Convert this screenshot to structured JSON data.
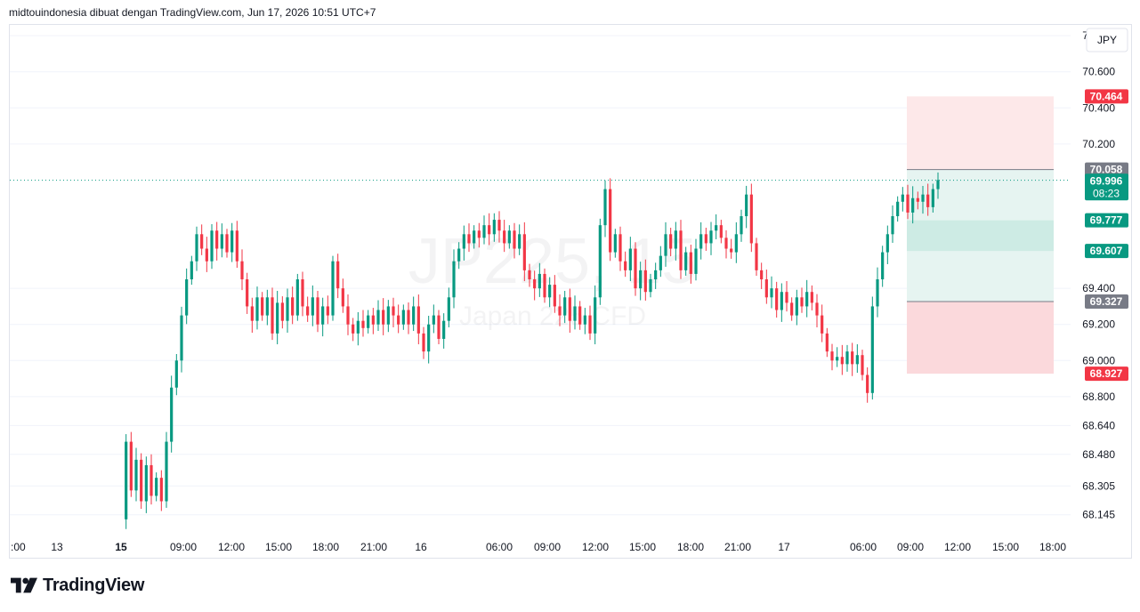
{
  "header": {
    "text": "midtouindonesia dibuat dengan TradingView.com, Jun 17, 2026 10:51 UTC+7"
  },
  "footer": {
    "brand": "TradingView",
    "logo_icon": "tradingview-logo-icon"
  },
  "colors": {
    "up": "#089981",
    "down": "#f23645",
    "grid": "#f0f3fa",
    "axis_text": "#131722",
    "profit_zone": "#e6f4f1",
    "loss_zone": "#fde8e9",
    "neutral_label": "#787b86",
    "stop_label": "#f23645",
    "target_label": "#f23645"
  },
  "chart_data": {
    "type": "candlestick",
    "watermark": {
      "symbol": "JP225, 15",
      "description": "Japan 225 CFD"
    },
    "currency_label": "JPY",
    "y_axis": {
      "min": 68.05,
      "max": 70.86,
      "ticks": [
        70.8,
        70.6,
        70.4,
        70.2,
        69.4,
        69.2,
        69.0,
        68.8,
        68.64,
        68.48,
        68.305,
        68.145
      ],
      "tick_labels": [
        "70.800",
        "70.600",
        "70.400",
        "70.200",
        "69.400",
        "69.200",
        "69.000",
        "68.800",
        "68.640",
        "68.480",
        "68.305",
        "68.145"
      ]
    },
    "x_axis": {
      "labels": [
        {
          "t": "13",
          "bold": false
        },
        {
          "t": "15",
          "bold": true
        },
        {
          "t": "09:00",
          "bold": false
        },
        {
          "t": "12:00",
          "bold": false
        },
        {
          "t": "15:00",
          "bold": false
        },
        {
          "t": "18:00",
          "bold": false
        },
        {
          "t": "21:00",
          "bold": false
        },
        {
          "t": "16",
          "bold": false
        },
        {
          "t": "06:00",
          "bold": false
        },
        {
          "t": "09:00",
          "bold": false
        },
        {
          "t": "12:00",
          "bold": false
        },
        {
          "t": "15:00",
          "bold": false
        },
        {
          "t": "18:00",
          "bold": false
        },
        {
          "t": "21:00",
          "bold": false
        },
        {
          "t": "17",
          "bold": false
        },
        {
          "t": "06:00",
          "bold": false
        },
        {
          "t": "09:00",
          "bold": false
        },
        {
          "t": "12:00",
          "bold": false
        },
        {
          "t": "15:00",
          "bold": false
        },
        {
          "t": "18:00",
          "bold": false
        }
      ],
      "left_edge_label": ":00"
    },
    "candle_path": [
      [
        0,
        68.12
      ],
      [
        1,
        68.55
      ],
      [
        2,
        68.28
      ],
      [
        3,
        68.45
      ],
      [
        4,
        68.22
      ],
      [
        5,
        68.42
      ],
      [
        6,
        68.25
      ],
      [
        7,
        68.35
      ],
      [
        8,
        68.22
      ],
      [
        9,
        68.55
      ],
      [
        10,
        68.85
      ],
      [
        11,
        69.0
      ],
      [
        12,
        69.25
      ],
      [
        13,
        69.45
      ],
      [
        14,
        69.55
      ],
      [
        15,
        69.7
      ],
      [
        16,
        69.62
      ],
      [
        17,
        69.55
      ],
      [
        18,
        69.72
      ],
      [
        19,
        69.62
      ],
      [
        20,
        69.7
      ],
      [
        21,
        69.6
      ],
      [
        22,
        69.72
      ],
      [
        23,
        69.55
      ],
      [
        24,
        69.45
      ],
      [
        25,
        69.3
      ],
      [
        26,
        69.22
      ],
      [
        27,
        69.35
      ],
      [
        28,
        69.25
      ],
      [
        29,
        69.35
      ],
      [
        30,
        69.15
      ],
      [
        31,
        69.32
      ],
      [
        32,
        69.22
      ],
      [
        33,
        69.35
      ],
      [
        34,
        69.25
      ],
      [
        35,
        69.45
      ],
      [
        36,
        69.3
      ],
      [
        37,
        69.25
      ],
      [
        38,
        69.35
      ],
      [
        39,
        69.2
      ],
      [
        40,
        69.3
      ],
      [
        41,
        69.25
      ],
      [
        42,
        69.55
      ],
      [
        43,
        69.4
      ],
      [
        44,
        69.3
      ],
      [
        45,
        69.2
      ],
      [
        46,
        69.15
      ],
      [
        47,
        69.22
      ],
      [
        48,
        69.18
      ],
      [
        49,
        69.25
      ],
      [
        50,
        69.2
      ],
      [
        51,
        69.28
      ],
      [
        52,
        69.2
      ],
      [
        53,
        69.3
      ],
      [
        54,
        69.25
      ],
      [
        55,
        69.2
      ],
      [
        56,
        69.28
      ],
      [
        57,
        69.2
      ],
      [
        58,
        69.3
      ],
      [
        59,
        69.15
      ],
      [
        60,
        69.05
      ],
      [
        61,
        69.2
      ],
      [
        62,
        69.25
      ],
      [
        63,
        69.12
      ],
      [
        64,
        69.22
      ],
      [
        65,
        69.35
      ],
      [
        66,
        69.55
      ],
      [
        67,
        69.62
      ],
      [
        68,
        69.7
      ],
      [
        69,
        69.65
      ],
      [
        70,
        69.72
      ],
      [
        71,
        69.68
      ],
      [
        72,
        69.75
      ],
      [
        73,
        69.7
      ],
      [
        74,
        69.78
      ],
      [
        75,
        69.72
      ],
      [
        76,
        69.65
      ],
      [
        77,
        69.72
      ],
      [
        78,
        69.62
      ],
      [
        79,
        69.7
      ],
      [
        80,
        69.5
      ],
      [
        81,
        69.45
      ],
      [
        82,
        69.4
      ],
      [
        83,
        69.48
      ],
      [
        84,
        69.35
      ],
      [
        85,
        69.42
      ],
      [
        86,
        69.3
      ],
      [
        87,
        69.25
      ],
      [
        88,
        69.35
      ],
      [
        89,
        69.22
      ],
      [
        90,
        69.3
      ],
      [
        91,
        69.2
      ],
      [
        92,
        69.25
      ],
      [
        93,
        69.15
      ],
      [
        94,
        69.35
      ],
      [
        95,
        69.75
      ],
      [
        96,
        69.95
      ],
      [
        97,
        69.6
      ],
      [
        98,
        69.7
      ],
      [
        99,
        69.55
      ],
      [
        100,
        69.5
      ],
      [
        101,
        69.62
      ],
      [
        102,
        69.4
      ],
      [
        103,
        69.5
      ],
      [
        104,
        69.38
      ],
      [
        105,
        69.45
      ],
      [
        106,
        69.5
      ],
      [
        107,
        69.58
      ],
      [
        108,
        69.7
      ],
      [
        109,
        69.62
      ],
      [
        110,
        69.72
      ],
      [
        111,
        69.5
      ],
      [
        112,
        69.6
      ],
      [
        113,
        69.48
      ],
      [
        114,
        69.62
      ],
      [
        115,
        69.7
      ],
      [
        116,
        69.65
      ],
      [
        117,
        69.72
      ],
      [
        118,
        69.75
      ],
      [
        119,
        69.68
      ],
      [
        120,
        69.62
      ],
      [
        121,
        69.6
      ],
      [
        122,
        69.7
      ],
      [
        123,
        69.8
      ],
      [
        124,
        69.92
      ],
      [
        125,
        69.65
      ],
      [
        126,
        69.5
      ],
      [
        127,
        69.45
      ],
      [
        128,
        69.35
      ],
      [
        129,
        69.4
      ],
      [
        130,
        69.28
      ],
      [
        131,
        69.38
      ],
      [
        132,
        69.32
      ],
      [
        133,
        69.25
      ],
      [
        134,
        69.35
      ],
      [
        135,
        69.3
      ],
      [
        136,
        69.38
      ],
      [
        137,
        69.32
      ],
      [
        138,
        69.25
      ],
      [
        139,
        69.15
      ],
      [
        140,
        69.05
      ],
      [
        141,
        69.0
      ],
      [
        142,
        69.02
      ],
      [
        143,
        68.98
      ],
      [
        144,
        69.05
      ],
      [
        145,
        68.98
      ],
      [
        146,
        69.03
      ],
      [
        147,
        68.92
      ],
      [
        148,
        68.82
      ],
      [
        149,
        69.3
      ],
      [
        150,
        69.45
      ],
      [
        151,
        69.6
      ],
      [
        152,
        69.7
      ],
      [
        153,
        69.8
      ],
      [
        154,
        69.88
      ],
      [
        155,
        69.92
      ],
      [
        156,
        69.82
      ],
      [
        157,
        69.9
      ],
      [
        158,
        69.88
      ],
      [
        159,
        69.92
      ],
      [
        160,
        69.85
      ],
      [
        161,
        69.95
      ],
      [
        162,
        70.0
      ]
    ],
    "last_price": {
      "value": 69.996,
      "label": "69.996",
      "countdown": "08:23"
    },
    "position": {
      "stop": {
        "value": 70.464,
        "label": "70.464"
      },
      "entry": {
        "value": 70.058,
        "label": "70.058"
      },
      "target1": {
        "value": 69.777,
        "label": "69.777"
      },
      "target2": {
        "value": 69.607,
        "label": "69.607"
      },
      "target3": {
        "value": 69.327,
        "label": "69.327"
      },
      "target_far": {
        "value": 68.927,
        "label": "68.927"
      }
    }
  }
}
